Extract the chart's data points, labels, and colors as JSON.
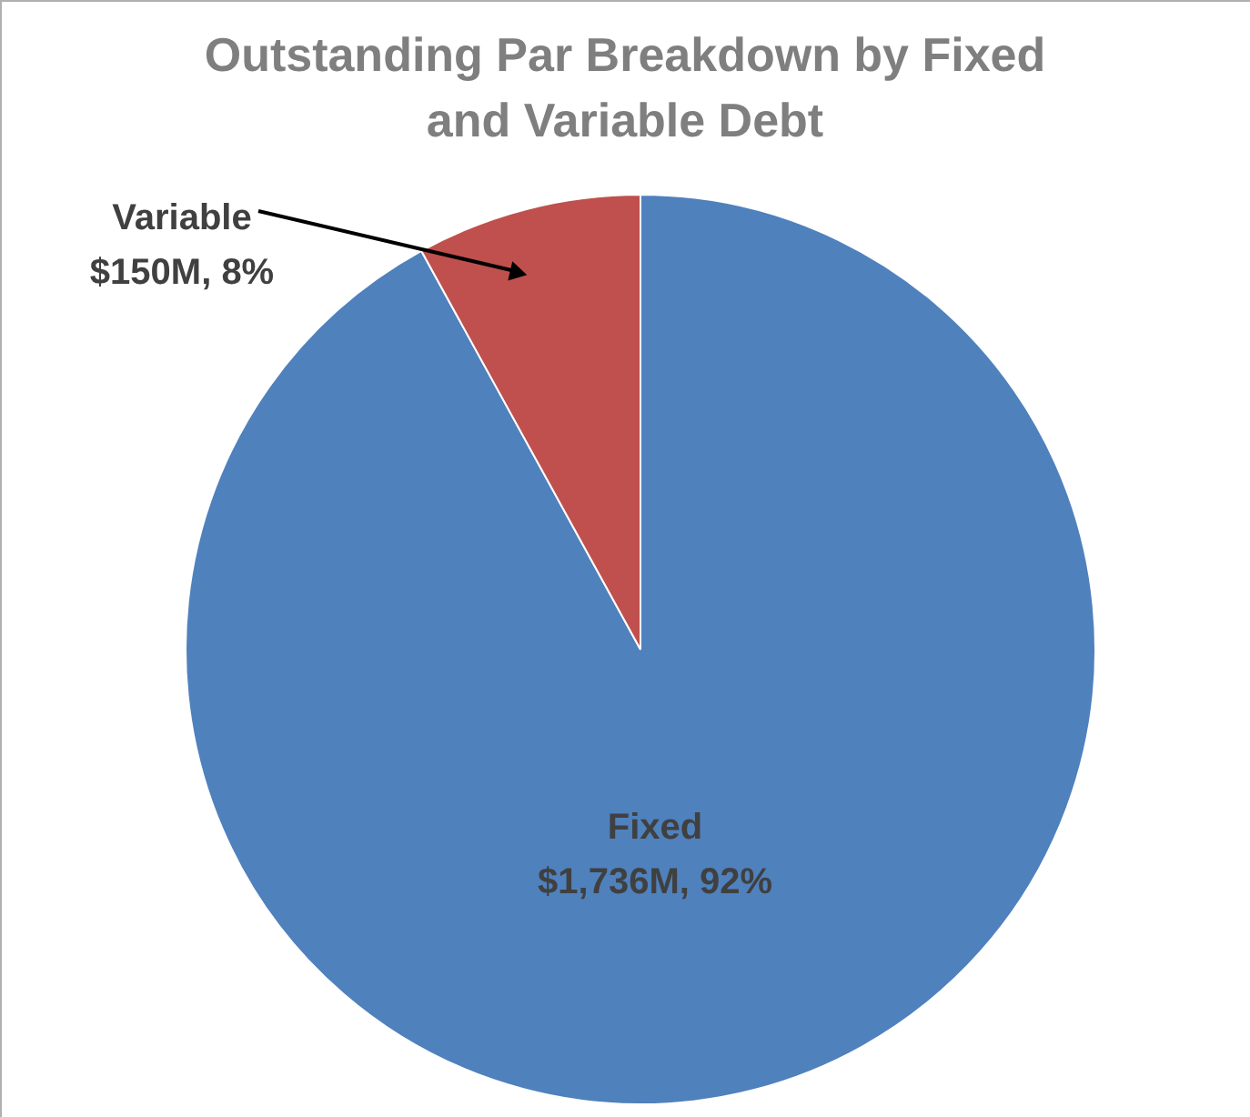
{
  "chart_data": {
    "type": "pie",
    "title": "Outstanding Par Breakdown by Fixed and Variable Debt",
    "categories": [
      "Fixed",
      "Variable"
    ],
    "values": [
      92,
      8
    ],
    "colors": [
      "#4f81bd",
      "#c0504d"
    ],
    "value_labels": [
      "$1,736M, 92%",
      "$150M, 8%"
    ]
  }
}
